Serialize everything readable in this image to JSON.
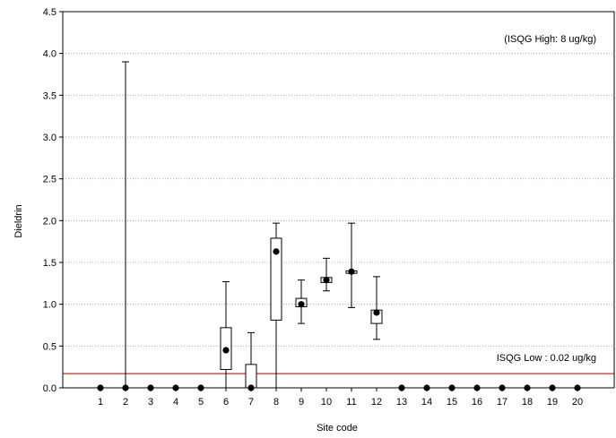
{
  "chart_data": {
    "type": "box",
    "title": "",
    "xlabel": "Site code",
    "ylabel": "Dieldrin",
    "ylim": [
      0,
      4.5
    ],
    "yticks": [
      "0.0",
      "0.5",
      "1.0",
      "1.5",
      "2.0",
      "2.5",
      "3.0",
      "3.5",
      "4.0",
      "4.5"
    ],
    "ytick_values": [
      0,
      0.5,
      1.0,
      1.5,
      2.0,
      2.5,
      3.0,
      3.5,
      4.0,
      4.5
    ],
    "categories": [
      "1",
      "2",
      "3",
      "4",
      "5",
      "6",
      "7",
      "8",
      "9",
      "10",
      "11",
      "12",
      "13",
      "14",
      "15",
      "16",
      "17",
      "18",
      "19",
      "20"
    ],
    "grid": "horizontal dotted",
    "boxes": [
      {
        "site": "1",
        "median": 0,
        "q1": 0,
        "q3": 0,
        "min": 0,
        "max": 0
      },
      {
        "site": "2",
        "median": 0,
        "q1": 0,
        "q3": 0,
        "min": 0,
        "max": 3.9
      },
      {
        "site": "3",
        "median": 0,
        "q1": 0,
        "q3": 0,
        "min": 0,
        "max": 0
      },
      {
        "site": "4",
        "median": 0,
        "q1": 0,
        "q3": 0,
        "min": 0,
        "max": 0
      },
      {
        "site": "5",
        "median": 0,
        "q1": 0,
        "q3": 0,
        "min": 0,
        "max": 0
      },
      {
        "site": "6",
        "median": 0.45,
        "q1": 0.22,
        "q3": 0.72,
        "min": 0,
        "max": 1.27
      },
      {
        "site": "7",
        "median": 0,
        "q1": 0,
        "q3": 0.28,
        "min": 0,
        "max": 0.66
      },
      {
        "site": "8",
        "median": 1.63,
        "q1": 0.81,
        "q3": 1.79,
        "min": 0,
        "max": 1.97
      },
      {
        "site": "9",
        "median": 1.0,
        "q1": 0.97,
        "q3": 1.07,
        "min": 0.77,
        "max": 1.29
      },
      {
        "site": "10",
        "median": 1.29,
        "q1": 1.26,
        "q3": 1.32,
        "min": 1.16,
        "max": 1.55
      },
      {
        "site": "11",
        "median": 1.39,
        "q1": 1.37,
        "q3": 1.4,
        "min": 0.96,
        "max": 1.97
      },
      {
        "site": "12",
        "median": 0.9,
        "q1": 0.77,
        "q3": 0.93,
        "min": 0.58,
        "max": 1.33
      },
      {
        "site": "13",
        "median": 0,
        "q1": 0,
        "q3": 0,
        "min": 0,
        "max": 0
      },
      {
        "site": "14",
        "median": 0,
        "q1": 0,
        "q3": 0,
        "min": 0,
        "max": 0
      },
      {
        "site": "15",
        "median": 0,
        "q1": 0,
        "q3": 0,
        "min": 0,
        "max": 0
      },
      {
        "site": "16",
        "median": 0,
        "q1": 0,
        "q3": 0,
        "min": 0,
        "max": 0
      },
      {
        "site": "17",
        "median": 0,
        "q1": 0,
        "q3": 0,
        "min": 0,
        "max": 0
      },
      {
        "site": "18",
        "median": 0,
        "q1": 0,
        "q3": 0,
        "min": 0,
        "max": 0
      },
      {
        "site": "19",
        "median": 0,
        "q1": 0,
        "q3": 0,
        "min": 0,
        "max": 0
      },
      {
        "site": "20",
        "median": 0,
        "q1": 0,
        "q3": 0,
        "min": 0,
        "max": 0
      }
    ],
    "reference_line": {
      "value": 0.17,
      "color": "#e02020"
    },
    "annotations": {
      "high": "(ISQG High: 8 ug/kg)",
      "low": "ISQG Low : 0.02 ug/kg"
    },
    "colors": {
      "box_fill": "#ffffff",
      "stroke": "#000000",
      "grid": "#999999",
      "median_dot": "#000000"
    }
  }
}
